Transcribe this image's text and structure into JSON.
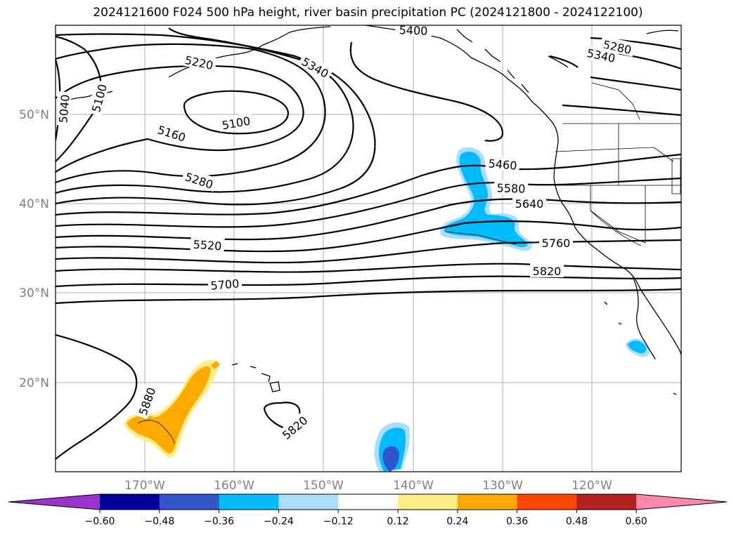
{
  "title": "2024121600 F024 500 hPa height, river basin precipitation PC (2024121800 - 2024122100)",
  "lat_labels": [
    "50°N",
    "40°N",
    "30°N",
    "20°N"
  ],
  "lon_labels": [
    "170°W",
    "160°W",
    "150°W",
    "140°W",
    "130°W",
    "120°W"
  ],
  "contour_labels": {
    "c5040": "5040",
    "c5100a": "5100",
    "c5220": "5220",
    "c5340a": "5340",
    "c5400": "5400",
    "c5280a": "5280",
    "c5340b": "5340",
    "c5100b": "5100",
    "c5160": "5160",
    "c5280b": "5280",
    "c5460": "5460",
    "c5580": "5580",
    "c5640": "5640",
    "c5520": "5520",
    "c5760": "5760",
    "c5820a": "5820",
    "c5700": "5700",
    "c5880": "5880",
    "c5820b": "5820"
  },
  "colorbar": {
    "colors": [
      "#9933cc",
      "#000099",
      "#3355cc",
      "#00bbff",
      "#aaddff",
      "#ffffff",
      "#ffee88",
      "#ffaa00",
      "#ff4400",
      "#b22222",
      "#ff88aa"
    ],
    "ticks": [
      "−0.60",
      "−0.48",
      "−0.36",
      "−0.24",
      "−0.12",
      "0.12",
      "0.24",
      "0.36",
      "0.48",
      "0.60"
    ]
  }
}
